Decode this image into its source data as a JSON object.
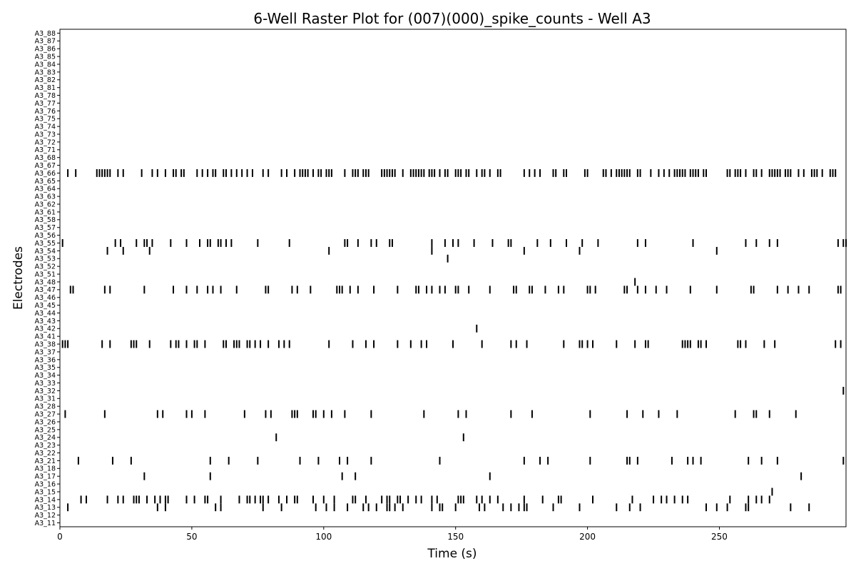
{
  "chart_data": {
    "type": "raster",
    "title": "6-Well Raster Plot for (007)(000)_spike_counts - Well A3",
    "xlabel": "Time (s)",
    "ylabel": "Electrodes",
    "xlim": [
      0,
      298
    ],
    "xticks": [
      0,
      50,
      100,
      150,
      200,
      250
    ],
    "xtick_labels": [
      "0",
      "50",
      "100",
      "150",
      "200",
      "250"
    ],
    "grid": false,
    "legend": "none",
    "spike_color": "#000000",
    "electrodes": [
      "A3_11",
      "A3_12",
      "A3_13",
      "A3_14",
      "A3_15",
      "A3_16",
      "A3_17",
      "A3_18",
      "A3_21",
      "A3_22",
      "A3_23",
      "A3_24",
      "A3_25",
      "A3_26",
      "A3_27",
      "A3_28",
      "A3_31",
      "A3_32",
      "A3_33",
      "A3_34",
      "A3_35",
      "A3_36",
      "A3_37",
      "A3_38",
      "A3_41",
      "A3_42",
      "A3_43",
      "A3_44",
      "A3_45",
      "A3_46",
      "A3_47",
      "A3_48",
      "A3_51",
      "A3_52",
      "A3_53",
      "A3_54",
      "A3_55",
      "A3_56",
      "A3_57",
      "A3_58",
      "A3_61",
      "A3_62",
      "A3_63",
      "A3_64",
      "A3_65",
      "A3_66",
      "A3_67",
      "A3_68",
      "A3_71",
      "A3_72",
      "A3_73",
      "A3_74",
      "A3_75",
      "A3_76",
      "A3_77",
      "A3_78",
      "A3_81",
      "A3_82",
      "A3_83",
      "A3_84",
      "A3_85",
      "A3_86",
      "A3_87",
      "A3_88"
    ],
    "spikes": {
      "A3_66": [
        3,
        6,
        14,
        15,
        16,
        17,
        18,
        19,
        22,
        24,
        31,
        35,
        37,
        40,
        43,
        44,
        46,
        47,
        52,
        54,
        56,
        58,
        59,
        62,
        63,
        65,
        67,
        69,
        71,
        73,
        77,
        79,
        84,
        86,
        89,
        91,
        92,
        93,
        94,
        96,
        98,
        99,
        101,
        102,
        103,
        108,
        111,
        112,
        113,
        115,
        116,
        117,
        122,
        123,
        124,
        125,
        126,
        127,
        130,
        133,
        134,
        135,
        136,
        137,
        138,
        140,
        141,
        142,
        144,
        146,
        147,
        150,
        151,
        152,
        154,
        155,
        158,
        160,
        161,
        163,
        166,
        167,
        176,
        178,
        180,
        182,
        187,
        188,
        191,
        192,
        199,
        200,
        206,
        207,
        209,
        211,
        212,
        213,
        214,
        215,
        216,
        219,
        220,
        224,
        227,
        229,
        231,
        233,
        234,
        235,
        236,
        237,
        239,
        240,
        241,
        242,
        244,
        245,
        253,
        254,
        256,
        257,
        258,
        260,
        263,
        264,
        266,
        269,
        270,
        271,
        272,
        273,
        275,
        276,
        277,
        280,
        282,
        285,
        286,
        287,
        289,
        292,
        293,
        294
      ],
      "A3_55": [
        1,
        21,
        23,
        29,
        32,
        33,
        35,
        42,
        48,
        53,
        56,
        57,
        60,
        61,
        63,
        65,
        75,
        87,
        108,
        109,
        113,
        118,
        120,
        125,
        126,
        141,
        146,
        149,
        151,
        157,
        164,
        170,
        171,
        181,
        186,
        192,
        198,
        204,
        219,
        222,
        240,
        260,
        264,
        269,
        272,
        295,
        297,
        298
      ],
      "A3_54": [
        18,
        24,
        34,
        102,
        141,
        176,
        197,
        249
      ],
      "A3_53": [
        147
      ],
      "A3_48": [
        218
      ],
      "A3_47": [
        4,
        5,
        17,
        19,
        32,
        43,
        48,
        52,
        56,
        58,
        61,
        67,
        78,
        79,
        88,
        90,
        95,
        105,
        106,
        107,
        110,
        113,
        119,
        128,
        135,
        136,
        139,
        141,
        144,
        146,
        150,
        151,
        155,
        163,
        172,
        173,
        178,
        179,
        184,
        189,
        191,
        200,
        201,
        203,
        214,
        215,
        219,
        222,
        226,
        230,
        239,
        249,
        262,
        263,
        272,
        276,
        280,
        284,
        295,
        296
      ],
      "A3_42": [
        158
      ],
      "A3_38": [
        1,
        2,
        3,
        16,
        19,
        27,
        28,
        29,
        34,
        42,
        44,
        45,
        48,
        51,
        52,
        55,
        62,
        63,
        66,
        67,
        68,
        71,
        72,
        74,
        76,
        79,
        83,
        85,
        87,
        102,
        111,
        116,
        119,
        128,
        133,
        137,
        139,
        149,
        160,
        171,
        173,
        177,
        191,
        197,
        198,
        200,
        202,
        211,
        218,
        222,
        223,
        236,
        237,
        238,
        239,
        242,
        243,
        245,
        257,
        258,
        260,
        267,
        271,
        294,
        296
      ],
      "A3_32": [
        297
      ],
      "A3_27": [
        2,
        17,
        37,
        39,
        48,
        50,
        55,
        70,
        78,
        80,
        88,
        89,
        90,
        96,
        97,
        100,
        103,
        108,
        118,
        138,
        151,
        154,
        171,
        179,
        201,
        215,
        221,
        227,
        234,
        256,
        263,
        264,
        269,
        279
      ],
      "A3_24": [
        82,
        153
      ],
      "A3_21": [
        7,
        20,
        27,
        57,
        64,
        75,
        91,
        98,
        106,
        109,
        118,
        144,
        176,
        182,
        185,
        201,
        215,
        216,
        219,
        232,
        238,
        240,
        243,
        261,
        266,
        272,
        297
      ],
      "A3_17": [
        32,
        57,
        107,
        112,
        163,
        281
      ],
      "A3_15": [
        270
      ],
      "A3_14": [
        8,
        10,
        18,
        22,
        24,
        28,
        29,
        30,
        33,
        36,
        38,
        40,
        41,
        48,
        51,
        55,
        56,
        61,
        68,
        71,
        72,
        74,
        76,
        77,
        79,
        83,
        86,
        89,
        90,
        96,
        100,
        104,
        111,
        112,
        116,
        122,
        124,
        125,
        128,
        129,
        132,
        135,
        137,
        141,
        143,
        151,
        152,
        153,
        158,
        160,
        163,
        166,
        176,
        183,
        189,
        190,
        202,
        217,
        225,
        228,
        230,
        233,
        236,
        238,
        254,
        261,
        264,
        266,
        269
      ],
      "A3_13": [
        3,
        37,
        40,
        59,
        61,
        77,
        84,
        97,
        101,
        104,
        109,
        115,
        117,
        120,
        124,
        125,
        127,
        130,
        141,
        144,
        145,
        150,
        159,
        161,
        168,
        171,
        174,
        176,
        177,
        187,
        197,
        211,
        216,
        220,
        245,
        249,
        253,
        260,
        261,
        277,
        284
      ]
    }
  }
}
